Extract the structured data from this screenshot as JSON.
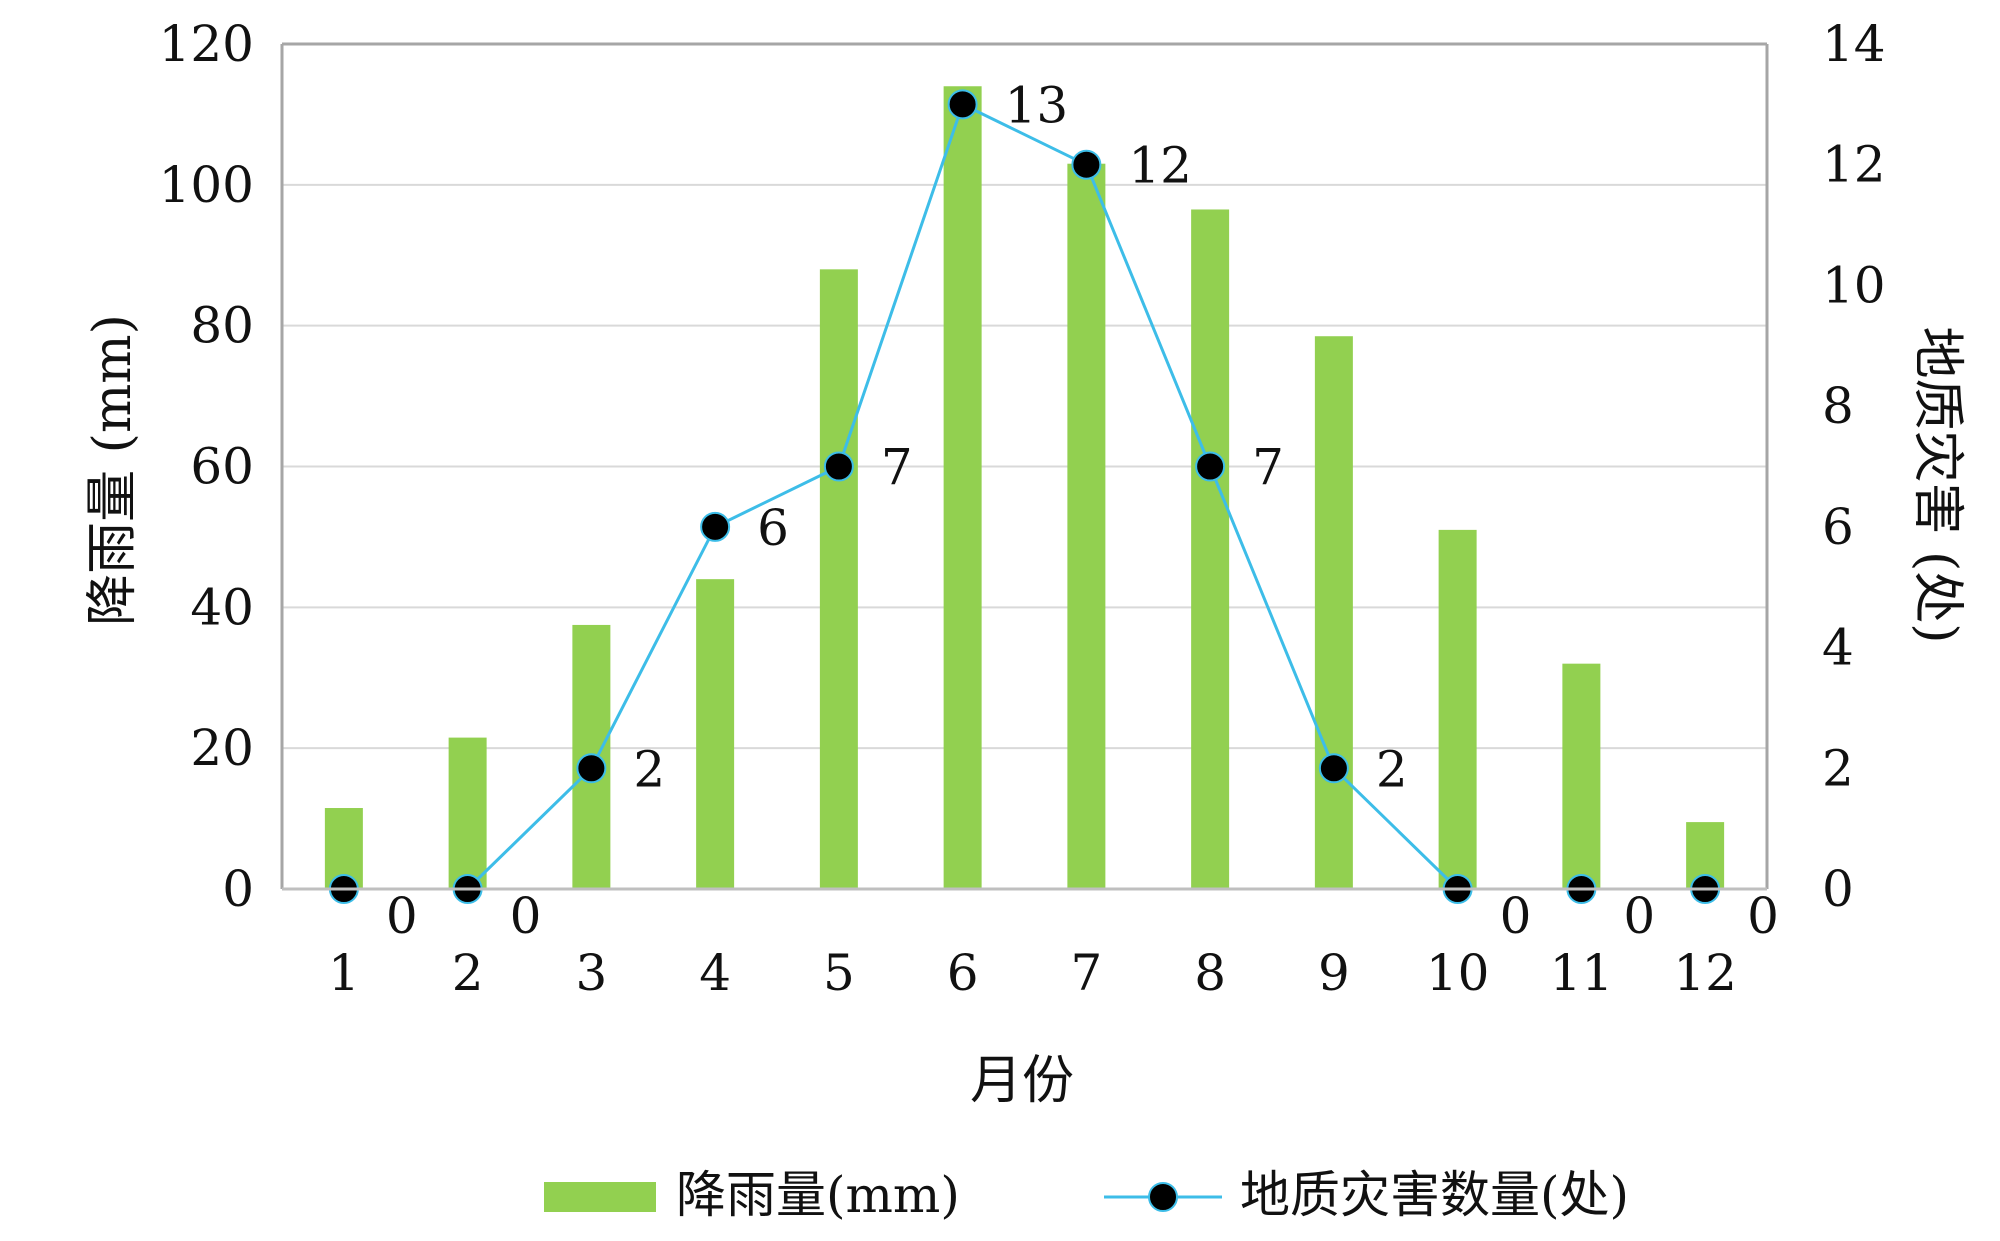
{
  "chart_data": {
    "type": "bar+line",
    "categories": [
      "1",
      "2",
      "3",
      "4",
      "5",
      "6",
      "7",
      "8",
      "9",
      "10",
      "11",
      "12"
    ],
    "xlabel": "月份",
    "ylabel_left": "降雨量 (mm)",
    "ylabel_right": "地质灾害 (处)",
    "ylim_left": [
      0,
      120
    ],
    "ylim_right": [
      0,
      14
    ],
    "yticks_left": [
      "0",
      "20",
      "40",
      "60",
      "80",
      "100",
      "120"
    ],
    "yticks_right": [
      "0",
      "2",
      "4",
      "6",
      "8",
      "10",
      "12",
      "14"
    ],
    "grid": true,
    "legend_position": "bottom",
    "series": [
      {
        "name": "降雨量(mm)",
        "kind": "bar",
        "axis": "left",
        "color": "#92d050",
        "values": [
          11.5,
          21.5,
          37.5,
          44,
          88,
          114,
          103,
          96.5,
          78.5,
          51,
          32,
          9.5
        ]
      },
      {
        "name": "地质灾害数量(处)",
        "kind": "line",
        "axis": "right",
        "color": "#3dbde8",
        "marker_color": "#000000",
        "values": [
          0,
          0,
          2,
          6,
          7,
          13,
          12,
          7,
          2,
          0,
          0,
          0
        ],
        "data_labels": [
          "0",
          "0",
          "2",
          "6",
          "7",
          "13",
          "12",
          "7",
          "2",
          "0",
          "0",
          "0"
        ]
      }
    ]
  }
}
